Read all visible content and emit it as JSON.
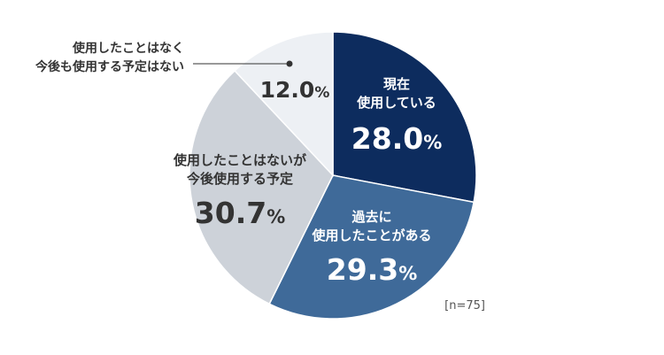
{
  "chart_data": {
    "type": "pie",
    "sample_size": "[n=75]",
    "slices": [
      {
        "label_lines": [
          "現在",
          "使用している"
        ],
        "value": 28.0,
        "value_text": "28.0",
        "unit": "%",
        "color": "#0d2c5e",
        "text_color": "#ffffff"
      },
      {
        "label_lines": [
          "過去に",
          "使用したことがある"
        ],
        "value": 29.3,
        "value_text": "29.3",
        "unit": "%",
        "color": "#3f6a99",
        "text_color": "#ffffff"
      },
      {
        "label_lines": [
          "使用したことはないが",
          "今後使用する予定"
        ],
        "value": 30.7,
        "value_text": "30.7",
        "unit": "%",
        "color": "#cdd2d9",
        "text_color": "#333333"
      },
      {
        "label_lines": [
          "使用したことはなく",
          "今後も使用する予定はない"
        ],
        "value": 12.0,
        "value_text": "12.0",
        "unit": "%",
        "color": "#edf0f4",
        "text_color": "#333333"
      }
    ]
  }
}
